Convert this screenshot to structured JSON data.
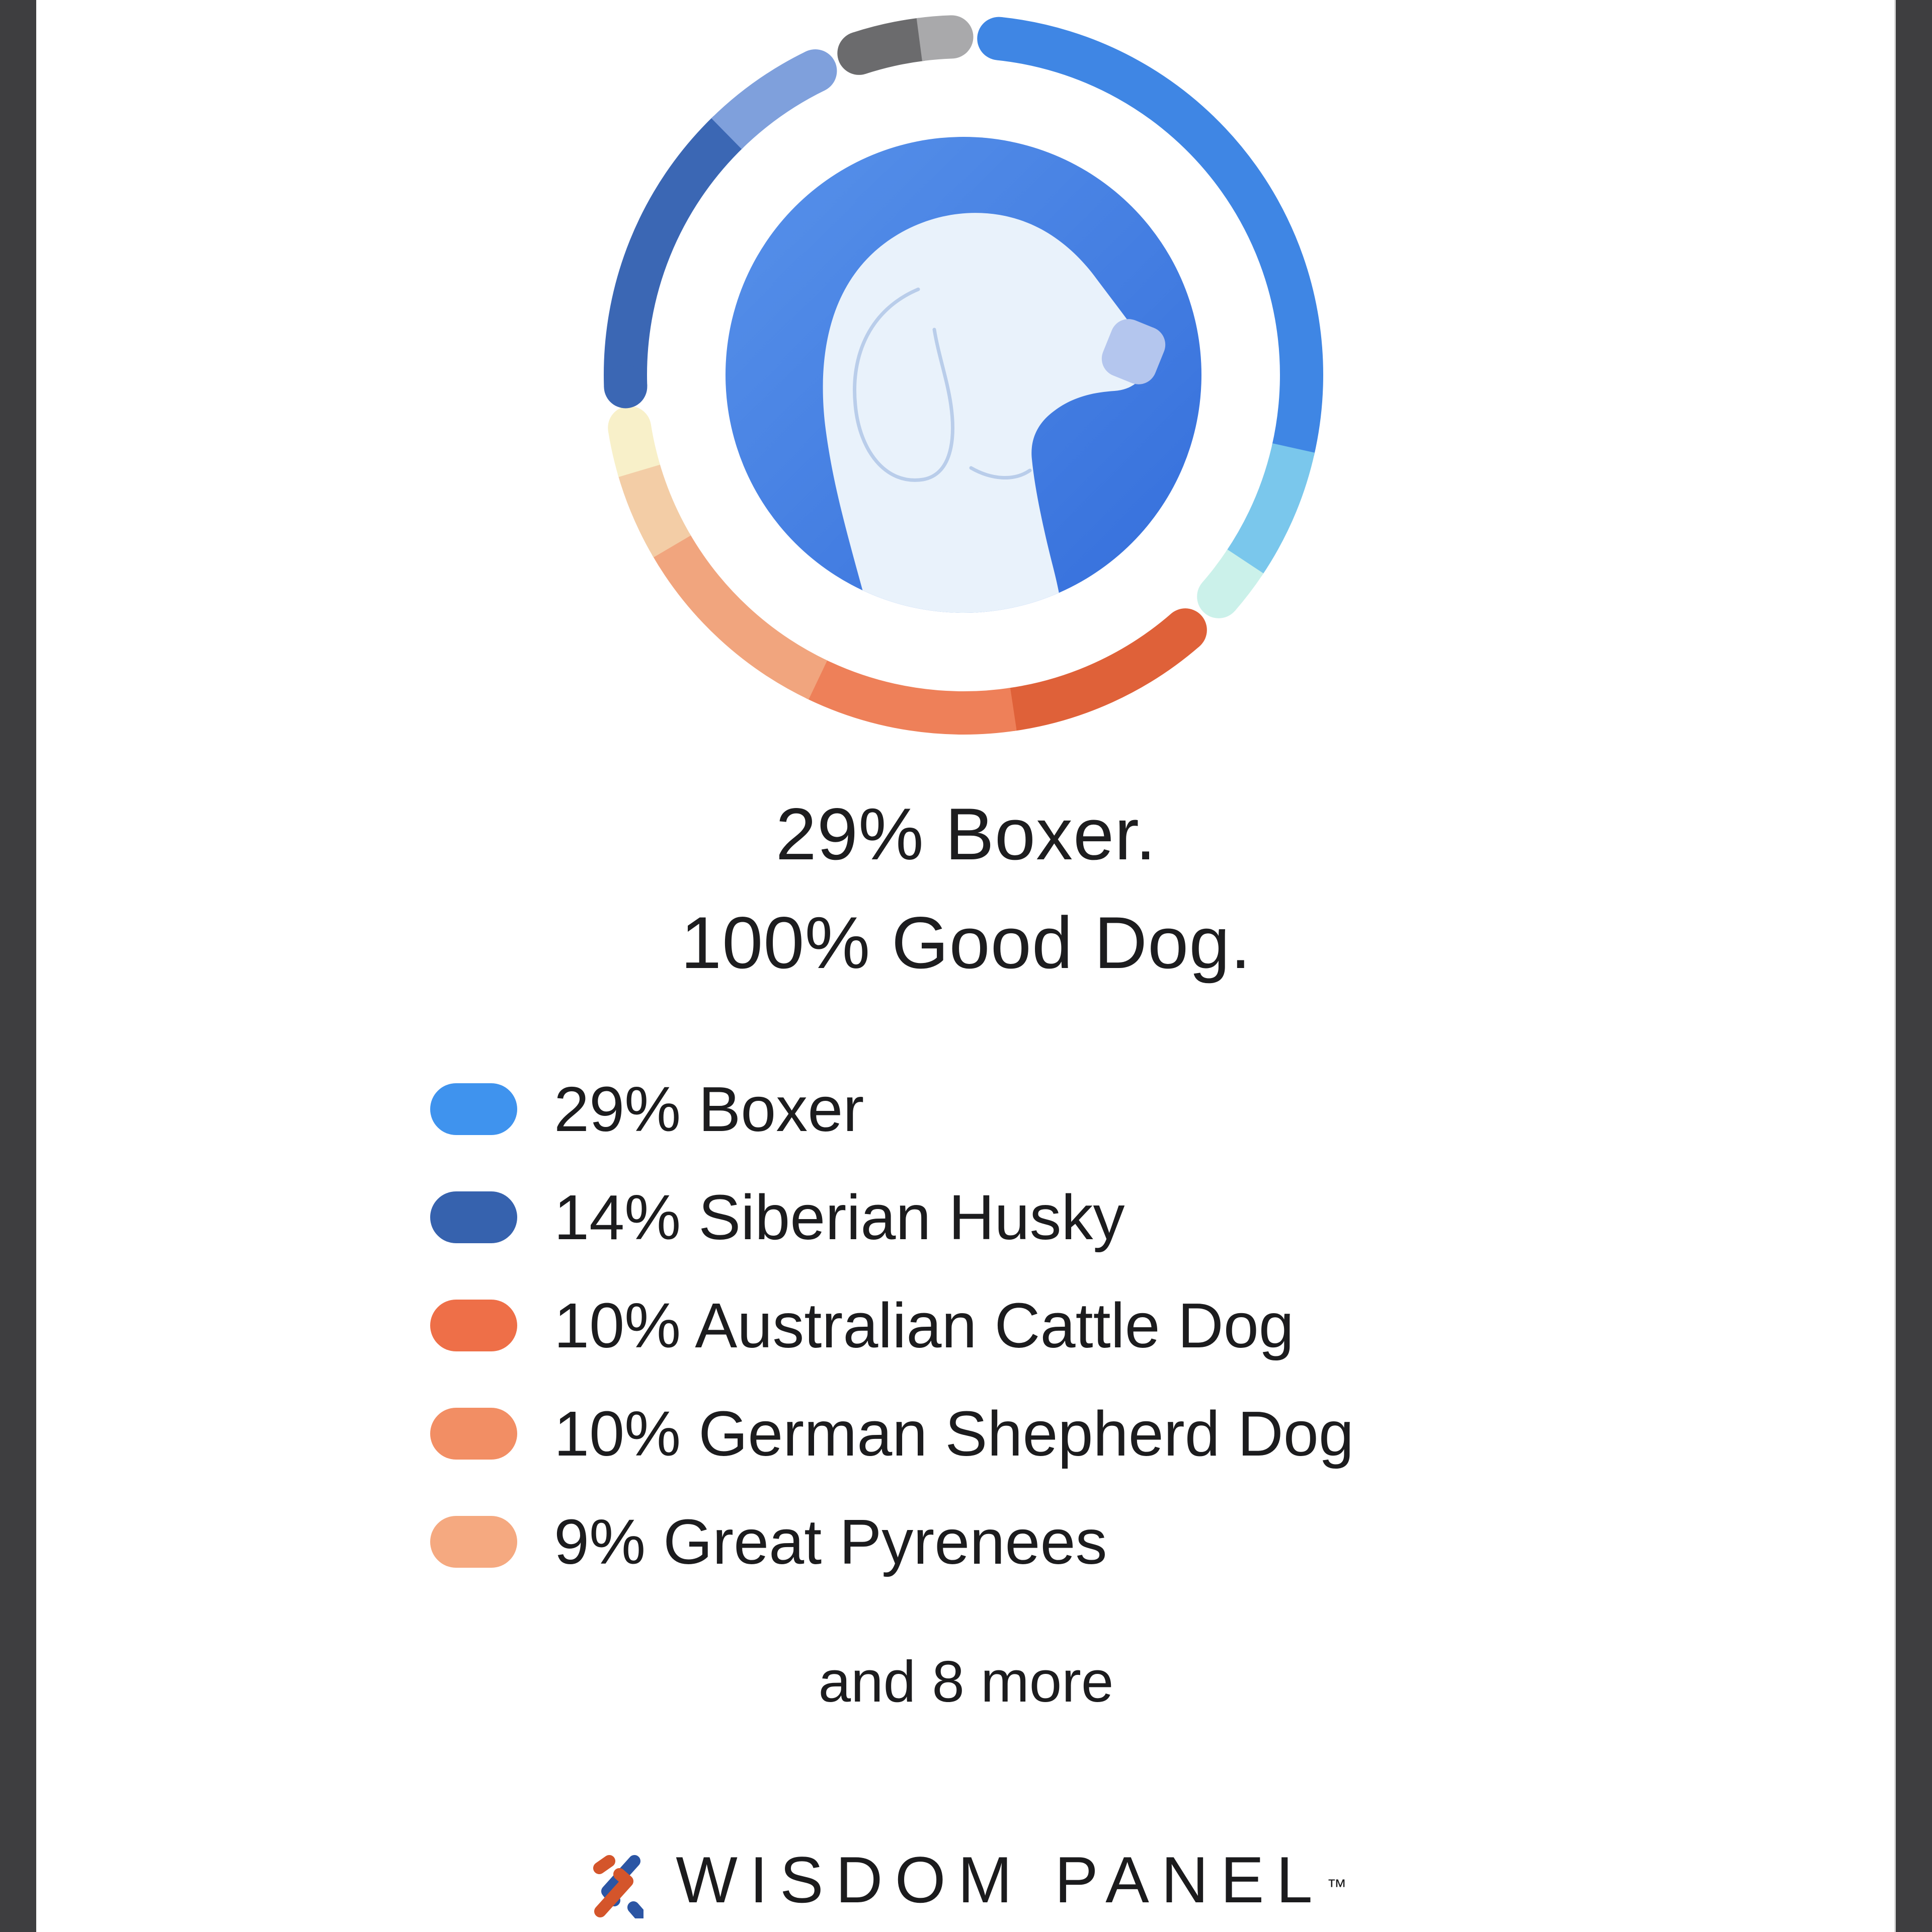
{
  "page": {
    "background": "#FFFFFF",
    "side_bar_color": "#3E3E40"
  },
  "headline": {
    "line1": "29% Boxer.",
    "line2": "100% Good Dog."
  },
  "legend": {
    "items": [
      {
        "label": "29% Boxer",
        "swatch_color": "#3F93EE"
      },
      {
        "label": "14% Siberian Husky",
        "swatch_color": "#3662AE"
      },
      {
        "label": "10% Australian Cattle Dog",
        "swatch_color": "#EE6F48"
      },
      {
        "label": "10% German Shepherd Dog",
        "swatch_color": "#F28E64"
      },
      {
        "label": "9% Great Pyrenees",
        "swatch_color": "#F5A980"
      }
    ],
    "more_label": "and 8 more"
  },
  "logo": {
    "brand": "WISDOM PANEL",
    "trademark": "™",
    "icon": "dna-helix-icon",
    "icon_blue": "#2B55A4",
    "icon_orange": "#D4552B"
  },
  "art": {
    "disc_gradient_start": "#5892EA",
    "disc_gradient_end": "#346EDB",
    "dog_fill": "#E9F2FB",
    "dog_line": "#B9CDEA",
    "dog_nose": "#B4C6EE"
  },
  "chart_data": {
    "type": "donut",
    "title": "29% Boxer. 100% Good Dog.",
    "series": [
      {
        "name": "Boxer",
        "value": 29,
        "color": "#3F93EE"
      },
      {
        "name": "Siberian Husky",
        "value": 14,
        "color": "#3662AE"
      },
      {
        "name": "Australian Cattle Dog",
        "value": 10,
        "color": "#EE6F48"
      },
      {
        "name": "German Shepherd Dog",
        "value": 10,
        "color": "#F28E64"
      },
      {
        "name": "Great Pyrenees",
        "value": 9,
        "color": "#F5A980"
      },
      {
        "name": "8 more breeds",
        "value": 28,
        "color": "#AEB6C4"
      }
    ],
    "legend_position": "below",
    "center_image": "dog-head-profile",
    "ring_segments": [
      {
        "name": "boxer",
        "color": "#3F86E4",
        "start": 6,
        "end": 103,
        "cap_start": true
      },
      {
        "name": "extra-sky",
        "color": "#7AC7EC",
        "start": 103,
        "end": 124
      },
      {
        "name": "extra-mint",
        "color": "#CBF1EA",
        "start": 124,
        "end": 131,
        "cap_end": true
      },
      {
        "name": "acd",
        "color": "#DF6139",
        "start": 139,
        "end": 172,
        "cap_start": true
      },
      {
        "name": "gsd",
        "color": "#EE8059",
        "start": 172,
        "end": 206
      },
      {
        "name": "pyrenees",
        "color": "#F1A57E",
        "start": 206,
        "end": 240
      },
      {
        "name": "extra-peach",
        "color": "#F3CDA6",
        "start": 240,
        "end": 254
      },
      {
        "name": "extra-cream",
        "color": "#F8F0C9",
        "start": 254,
        "end": 261,
        "cap_end": true
      },
      {
        "name": "husky",
        "color": "#3B67B4",
        "start": 268,
        "end": 316,
        "cap_start": true
      },
      {
        "name": "extra-slate",
        "color": "#7FA0DC",
        "start": 316,
        "end": 334,
        "cap_end": true
      },
      {
        "name": "extra-gray",
        "color": "#6B6B6D",
        "start": 342,
        "end": 353,
        "cap_start": true
      },
      {
        "name": "extra-silver",
        "color": "#A9A9AB",
        "start": 353,
        "end": 358,
        "cap_end": true
      }
    ],
    "ring_geometry": {
      "center_x": 730,
      "center_y": 730,
      "radius": 672,
      "stroke_width": 86
    }
  }
}
